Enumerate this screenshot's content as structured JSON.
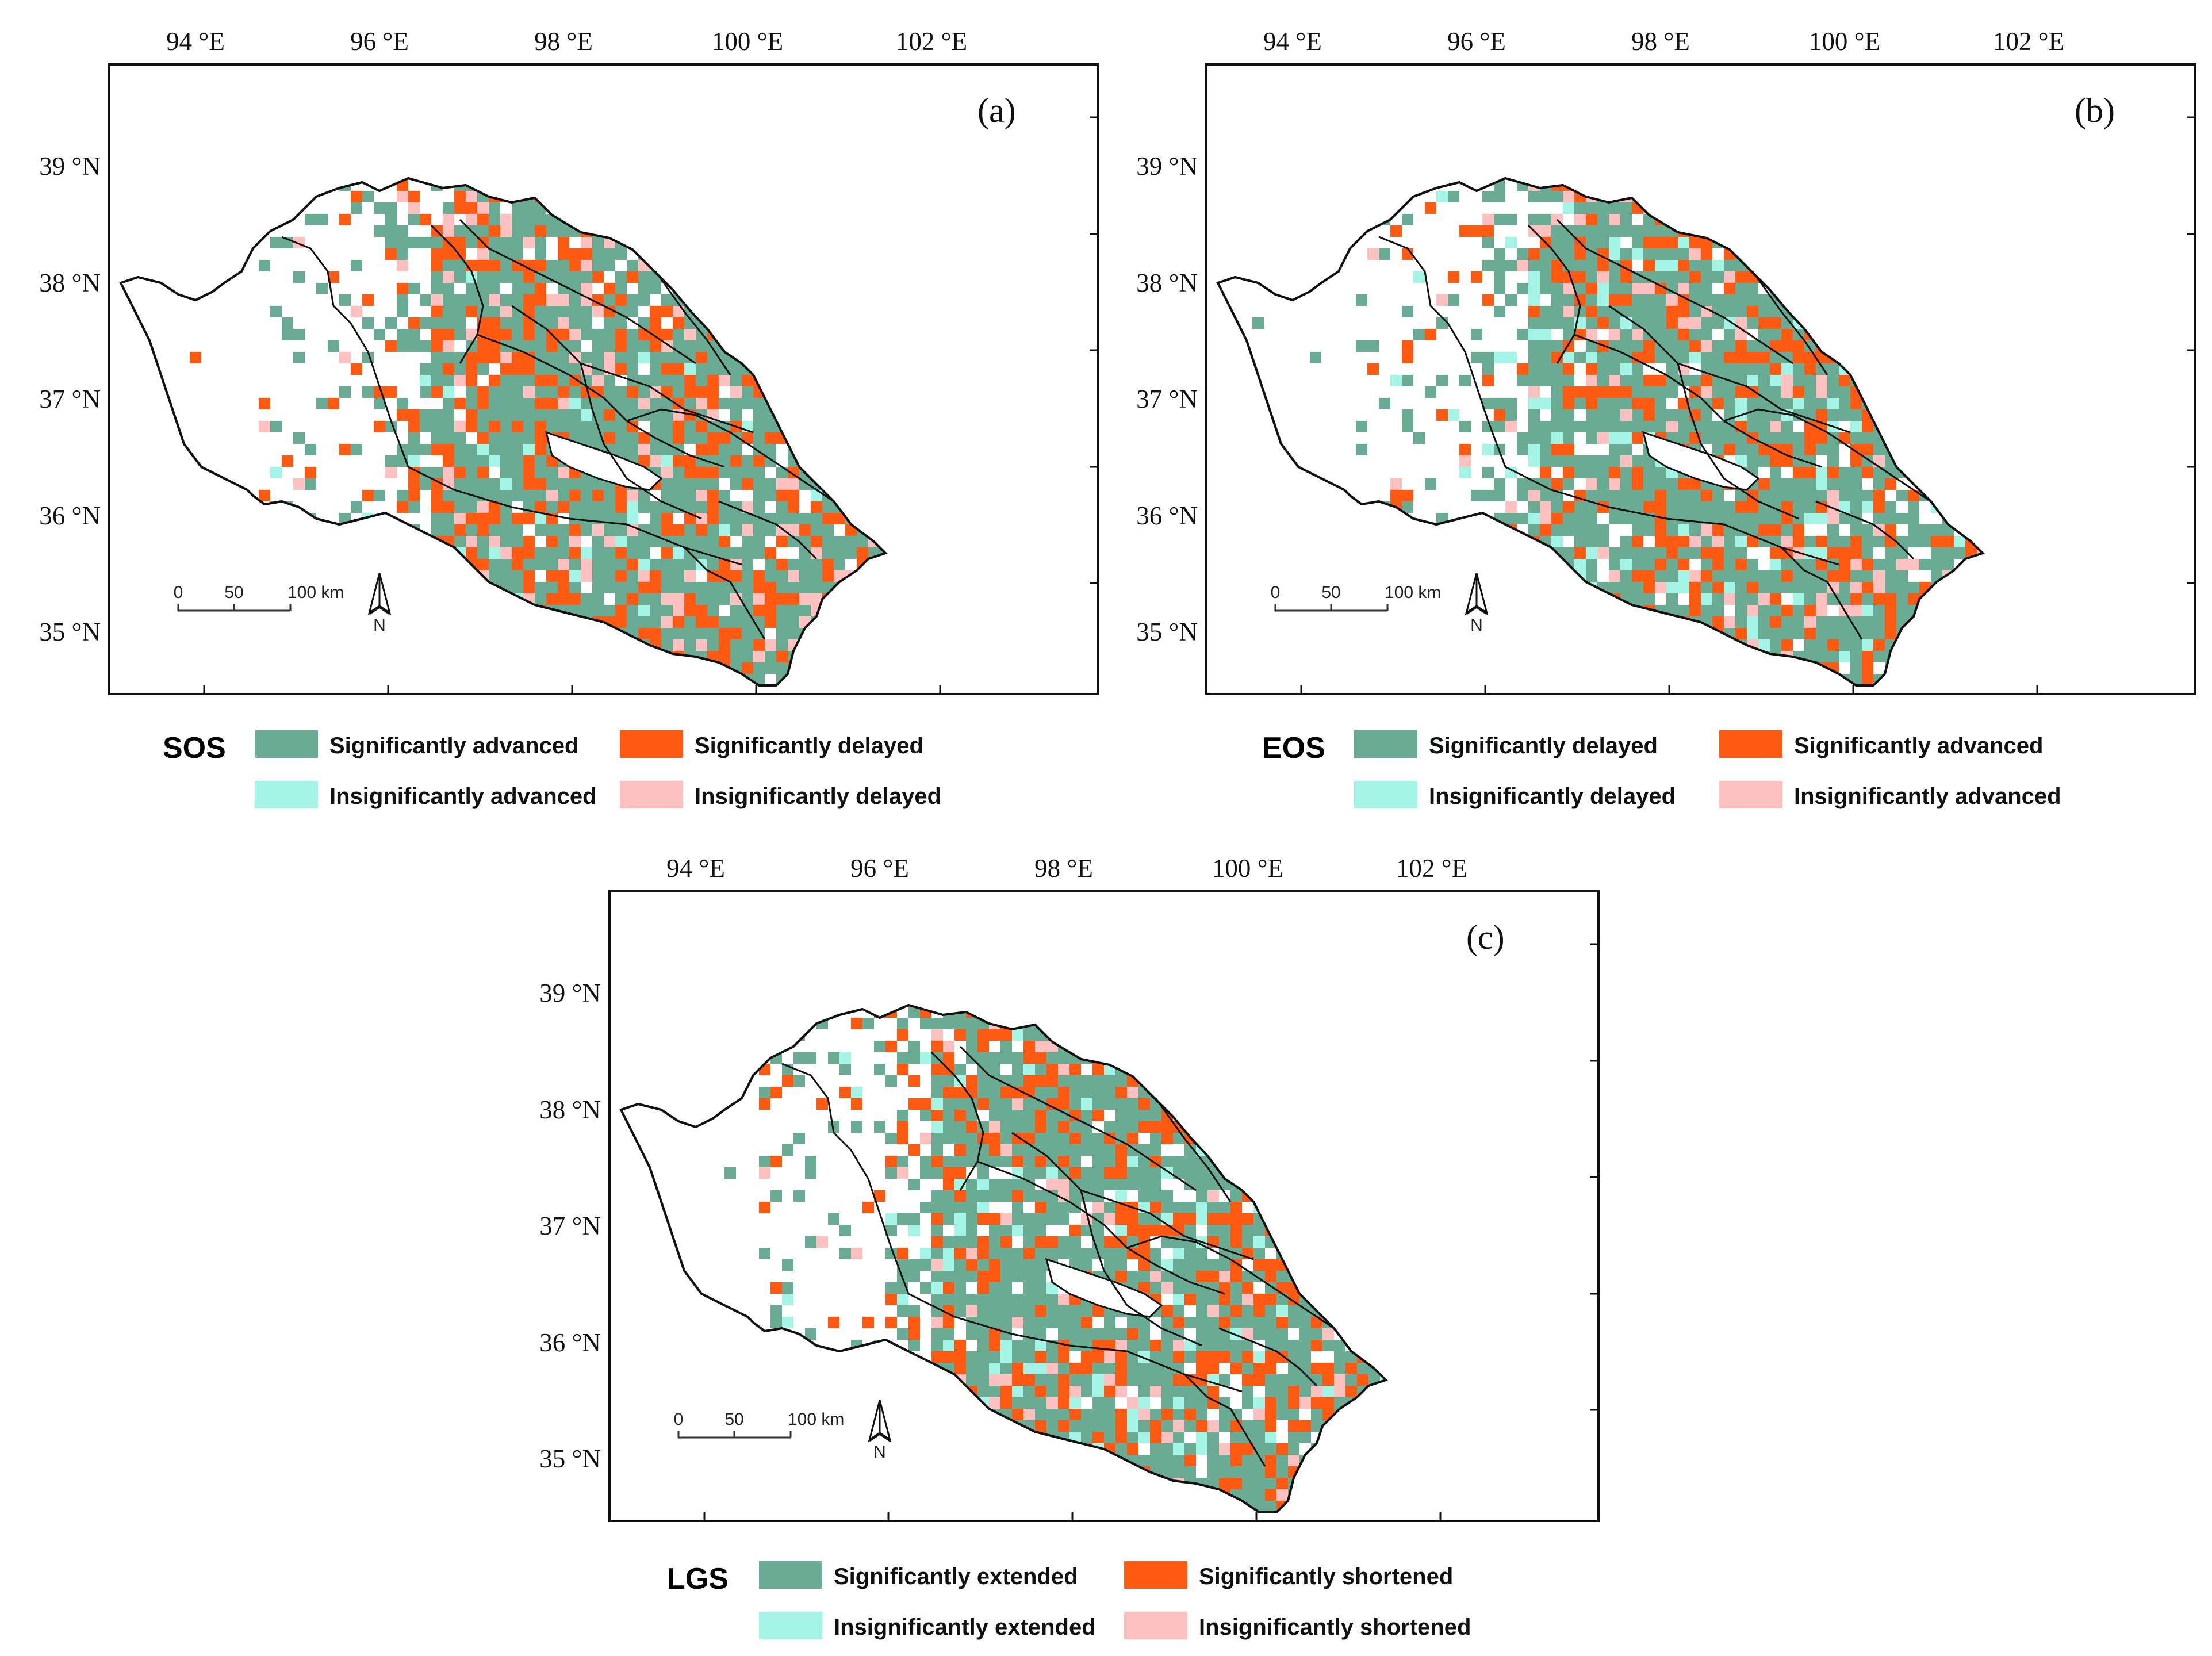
{
  "colors": {
    "sig_green": "#6aab94",
    "insig_cyan": "#a4f5e6",
    "sig_orange": "#ff5a12",
    "insig_pink": "#ffc0c0"
  },
  "shared": {
    "lon_labels": [
      "94 °E",
      "96 °E",
      "98 °E",
      "100 °E",
      "102 °E"
    ],
    "lat_labels": [
      "39 °N",
      "38 °N",
      "37 °N",
      "36 °N",
      "35 °N"
    ],
    "scale_labels": [
      "0",
      "50",
      "100 km"
    ],
    "north_label": "N",
    "north_arrow_icon": "north-arrow-icon"
  },
  "panels": [
    {
      "id": "a",
      "label": "(a)",
      "legend_title": "SOS",
      "legend": [
        {
          "text": "Significantly advanced",
          "color_key": "sig_green"
        },
        {
          "text": "Significantly delayed",
          "color_key": "sig_orange"
        },
        {
          "text": "Insignificantly advanced",
          "color_key": "insig_cyan"
        },
        {
          "text": "Insignificantly delayed",
          "color_key": "insig_pink"
        }
      ],
      "class_shares": {
        "sig_green": 0.58,
        "sig_orange": 0.28,
        "insig_cyan": 0.03,
        "insig_pink": 0.11
      }
    },
    {
      "id": "b",
      "label": "(b)",
      "legend_title": "EOS",
      "legend": [
        {
          "text": "Significantly delayed",
          "color_key": "sig_green"
        },
        {
          "text": "Significantly advanced",
          "color_key": "sig_orange"
        },
        {
          "text": "Insignificantly delayed",
          "color_key": "insig_cyan"
        },
        {
          "text": "Insignificantly advanced",
          "color_key": "insig_pink"
        }
      ],
      "class_shares": {
        "sig_green": 0.58,
        "sig_orange": 0.26,
        "insig_cyan": 0.08,
        "insig_pink": 0.08
      }
    },
    {
      "id": "c",
      "label": "(c)",
      "legend_title": "LGS",
      "legend": [
        {
          "text": "Significantly extended",
          "color_key": "sig_green"
        },
        {
          "text": "Significantly shortened",
          "color_key": "sig_orange"
        },
        {
          "text": "Insignificantly extended",
          "color_key": "insig_cyan"
        },
        {
          "text": "Insignificantly shortened",
          "color_key": "insig_pink"
        }
      ],
      "class_shares": {
        "sig_green": 0.6,
        "sig_orange": 0.26,
        "insig_cyan": 0.08,
        "insig_pink": 0.06
      }
    }
  ]
}
